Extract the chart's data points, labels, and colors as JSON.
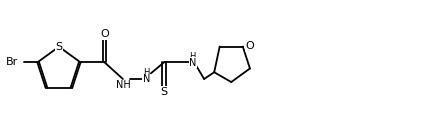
{
  "bg_color": "#ffffff",
  "line_color": "#000000",
  "line_width": 1.3,
  "font_size": 7.5,
  "fig_width": 4.28,
  "fig_height": 1.24,
  "dpi": 100,
  "xlim": [
    0.0,
    9.8
  ],
  "ylim": [
    0.0,
    2.7
  ]
}
